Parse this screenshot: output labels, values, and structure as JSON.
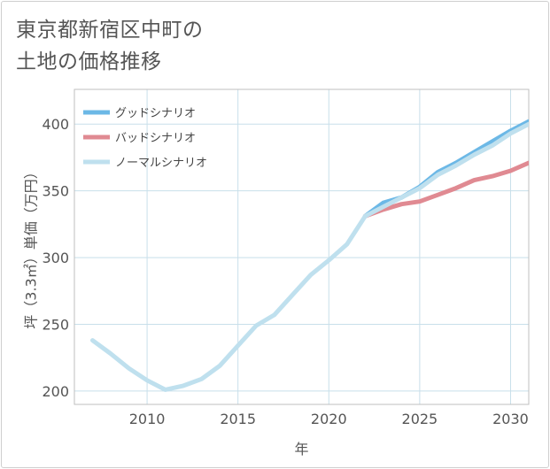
{
  "title": {
    "line1": "東京都新宿区中町の",
    "line2": "土地の価格推移"
  },
  "colors": {
    "good": "#6cb8e6",
    "bad": "#e08a92",
    "normal": "#bfe0ee",
    "grid": "#c8dfea"
  },
  "chart_data": {
    "type": "line",
    "title": "東京都新宿区中町の土地の価格推移",
    "xlabel": "年",
    "ylabel": "坪（3.3㎡）単価（万円）",
    "xlim": [
      2006,
      2031
    ],
    "ylim": [
      190,
      426
    ],
    "x_ticks": [
      2010,
      2015,
      2020,
      2025,
      2030
    ],
    "y_ticks": [
      200,
      250,
      300,
      350,
      400
    ],
    "legend_position": "top-left",
    "series": [
      {
        "key": "good",
        "name": "グッドシナリオ",
        "x": [
          2022,
          2023,
          2024,
          2025,
          2026,
          2027,
          2028,
          2029,
          2030,
          2031
        ],
        "values": [
          331,
          341,
          345,
          353,
          364,
          371,
          379,
          387,
          395,
          402
        ]
      },
      {
        "key": "bad",
        "name": "バッドシナリオ",
        "x": [
          2022,
          2023,
          2024,
          2025,
          2026,
          2027,
          2028,
          2029,
          2030,
          2031
        ],
        "values": [
          331,
          336,
          340,
          342,
          347,
          352,
          358,
          361,
          365,
          371
        ]
      },
      {
        "key": "normal",
        "name": "ノーマルシナリオ",
        "x": [
          2007,
          2008,
          2009,
          2010,
          2011,
          2012,
          2013,
          2014,
          2015,
          2016,
          2017,
          2018,
          2019,
          2020,
          2021,
          2022,
          2023,
          2024,
          2025,
          2026,
          2027,
          2028,
          2029,
          2030,
          2031
        ],
        "values": [
          238,
          228,
          217,
          208,
          201,
          204,
          209,
          219,
          234,
          249,
          257,
          272,
          287,
          298,
          310,
          331,
          338,
          345,
          352,
          362,
          369,
          377,
          384,
          393,
          400
        ]
      }
    ]
  }
}
